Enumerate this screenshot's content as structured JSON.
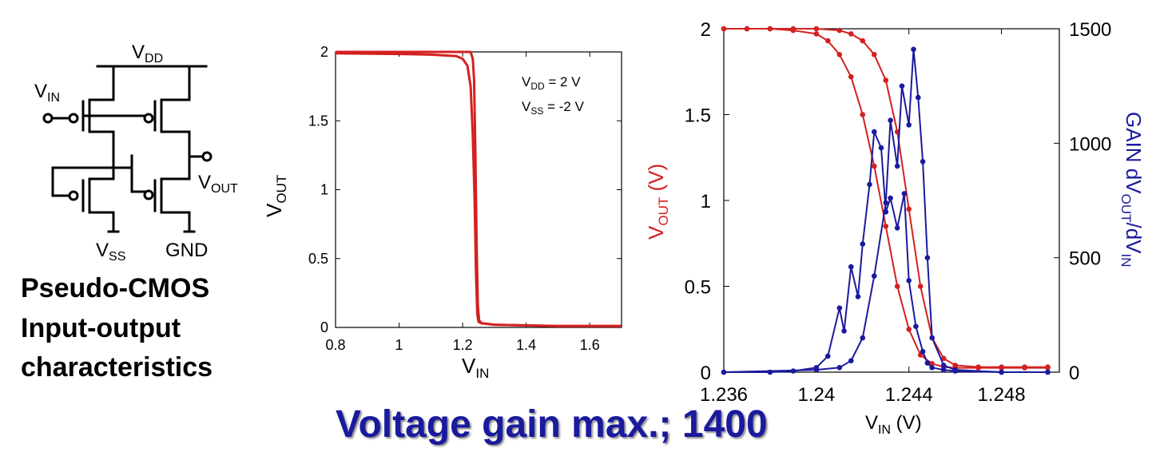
{
  "circuit": {
    "vdd": {
      "main": "V",
      "sub": "DD"
    },
    "vin": {
      "main": "V",
      "sub": "IN"
    },
    "vout": {
      "main": "V",
      "sub": "OUT"
    },
    "vss": {
      "main": "V",
      "sub": "SS"
    },
    "gnd": "GND"
  },
  "description": [
    "Pseudo-CMOS",
    "Input-output",
    "characteristics"
  ],
  "headline": "Voltage gain max.; 1400",
  "colors": {
    "red": "#d42020",
    "blue": "#1a1a9e",
    "headline": "#1a1a9e",
    "axis": "#000000"
  },
  "chart_data": [
    {
      "type": "line",
      "xlabel": {
        "main": "V",
        "sub": "IN"
      },
      "ylabel": {
        "main": "V",
        "sub": "OUT"
      },
      "xlim": [
        0.8,
        1.7
      ],
      "ylim": [
        0,
        2
      ],
      "xticks": [
        "0.8",
        "1",
        "1.2",
        "1.4",
        "1.6"
      ],
      "xtick_values": [
        0.8,
        1.0,
        1.2,
        1.4,
        1.6
      ],
      "yticks": [
        "0",
        "0.5",
        "1",
        "1.5",
        "2"
      ],
      "ytick_values": [
        0,
        0.5,
        1,
        1.5,
        2
      ],
      "annotations": [
        {
          "main": "V",
          "sub": "DD",
          "rest": " = 2 V"
        },
        {
          "main": "V",
          "sub": "SS",
          "rest": " = -2 V"
        }
      ],
      "series": [
        {
          "color": "#d42020",
          "x": [
            0.8,
            1.0,
            1.1,
            1.18,
            1.2,
            1.215,
            1.225,
            1.232,
            1.238,
            1.242,
            1.246,
            1.25,
            1.26,
            1.3,
            1.5,
            1.7
          ],
          "y": [
            1.99,
            1.985,
            1.98,
            1.97,
            1.95,
            1.9,
            1.75,
            1.4,
            0.9,
            0.4,
            0.1,
            0.04,
            0.03,
            0.02,
            0.01,
            0.01
          ]
        },
        {
          "color": "#d42020",
          "x": [
            0.8,
            1.0,
            1.1,
            1.2,
            1.225,
            1.232,
            1.236,
            1.24,
            1.244,
            1.248,
            1.252,
            1.26,
            1.3,
            1.5,
            1.7
          ],
          "y": [
            2.0,
            2.0,
            2.0,
            2.0,
            2.0,
            1.95,
            1.8,
            1.3,
            0.6,
            0.15,
            0.05,
            0.03,
            0.02,
            0.01,
            0.01
          ]
        }
      ]
    },
    {
      "type": "line",
      "xlabel": {
        "main": "V",
        "sub": "IN",
        "rest": " (V)"
      },
      "ylabel_left": {
        "main": "V",
        "sub": "OUT",
        "rest": " (V)"
      },
      "ylabel_right": {
        "main": "GAIN dV",
        "sub": "OUT",
        "mid": "/dV",
        "sub2": "IN"
      },
      "xlim": [
        1.236,
        1.2505
      ],
      "ylim_left": [
        0,
        2
      ],
      "ylim_right": [
        0,
        1500
      ],
      "xticks": [
        "1.236",
        "1.24",
        "1.244",
        "1.248"
      ],
      "xtick_values": [
        1.236,
        1.24,
        1.244,
        1.248
      ],
      "yticks_left": [
        "0",
        "0.5",
        "1",
        "1.5",
        "2"
      ],
      "ytick_values_left": [
        0,
        0.5,
        1,
        1.5,
        2
      ],
      "yticks_right": [
        "0",
        "500",
        "1000",
        "1500"
      ],
      "ytick_values_right": [
        0,
        500,
        1000,
        1500
      ],
      "series": [
        {
          "axis": "left",
          "color": "#d42020",
          "markers": true,
          "x": [
            1.236,
            1.237,
            1.238,
            1.239,
            1.24,
            1.2405,
            1.241,
            1.2415,
            1.242,
            1.2425,
            1.243,
            1.2435,
            1.244,
            1.2445,
            1.245,
            1.2455,
            1.246,
            1.247,
            1.248,
            1.249,
            1.25
          ],
          "y": [
            2.0,
            2.0,
            2.0,
            1.99,
            1.97,
            1.93,
            1.85,
            1.72,
            1.5,
            1.2,
            0.85,
            0.5,
            0.25,
            0.1,
            0.05,
            0.03,
            0.025,
            0.025,
            0.025,
            0.025,
            0.025
          ]
        },
        {
          "axis": "left",
          "color": "#d42020",
          "markers": true,
          "x": [
            1.236,
            1.237,
            1.238,
            1.239,
            1.24,
            1.241,
            1.2415,
            1.242,
            1.2425,
            1.243,
            1.2435,
            1.244,
            1.2445,
            1.245,
            1.2455,
            1.246,
            1.247,
            1.248,
            1.249,
            1.25
          ],
          "y": [
            2.0,
            2.0,
            2.0,
            2.0,
            2.0,
            1.99,
            1.97,
            1.93,
            1.85,
            1.7,
            1.4,
            0.95,
            0.5,
            0.2,
            0.08,
            0.04,
            0.03,
            0.03,
            0.03,
            0.03
          ]
        },
        {
          "axis": "right",
          "color": "#1a1a9e",
          "markers": true,
          "x": [
            1.236,
            1.238,
            1.239,
            1.24,
            1.2405,
            1.241,
            1.2412,
            1.2415,
            1.2418,
            1.242,
            1.2423,
            1.2425,
            1.2428,
            1.243,
            1.2432,
            1.2435,
            1.2438,
            1.244,
            1.2443,
            1.2446,
            1.2448,
            1.245,
            1.2455,
            1.246,
            1.248,
            1.25
          ],
          "y": [
            0,
            0,
            5,
            20,
            70,
            280,
            180,
            460,
            330,
            560,
            820,
            1050,
            980,
            700,
            760,
            630,
            780,
            400,
            200,
            90,
            40,
            20,
            10,
            5,
            0,
            0
          ]
        },
        {
          "axis": "right",
          "color": "#1a1a9e",
          "markers": true,
          "x": [
            1.236,
            1.24,
            1.241,
            1.2415,
            1.242,
            1.2425,
            1.243,
            1.2432,
            1.2435,
            1.2437,
            1.244,
            1.2442,
            1.2444,
            1.2446,
            1.2448,
            1.245,
            1.2455,
            1.246,
            1.248,
            1.25
          ],
          "y": [
            0,
            10,
            20,
            50,
            150,
            420,
            740,
            1100,
            900,
            1250,
            1080,
            1410,
            1200,
            920,
            500,
            150,
            30,
            10,
            0,
            0
          ]
        }
      ]
    }
  ]
}
